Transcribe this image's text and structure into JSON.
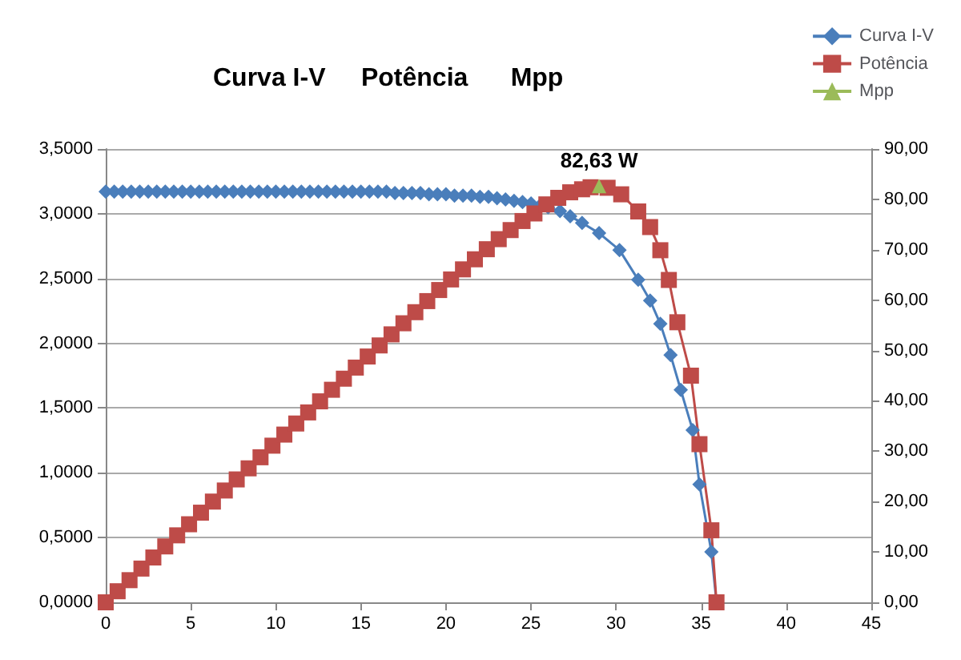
{
  "chart_data": {
    "type": "line",
    "title": "Curva I-V     Potência      Mpp",
    "legend": "top right",
    "grid": "y",
    "xlim": [
      0,
      45
    ],
    "xticks": [
      0,
      5,
      10,
      15,
      20,
      25,
      30,
      35,
      40,
      45
    ],
    "ylim": [
      0,
      3.5
    ],
    "yticks": [
      {
        "value": 0,
        "label": "0,0000"
      },
      {
        "value": 0.5,
        "label": "0,5000"
      },
      {
        "value": 1,
        "label": "1,0000"
      },
      {
        "value": 1.5,
        "label": "1,5000"
      },
      {
        "value": 2,
        "label": "2,0000"
      },
      {
        "value": 2.5,
        "label": "2,5000"
      },
      {
        "value": 3,
        "label": "3,0000"
      },
      {
        "value": 3.5,
        "label": "3,5000"
      }
    ],
    "y2lim": [
      0,
      90
    ],
    "y2ticks": [
      {
        "value": 0,
        "label": "0,00"
      },
      {
        "value": 10,
        "label": "10,00"
      },
      {
        "value": 20,
        "label": "20,00"
      },
      {
        "value": 30,
        "label": "30,00"
      },
      {
        "value": 40,
        "label": "40,00"
      },
      {
        "value": 50,
        "label": "50,00"
      },
      {
        "value": 60,
        "label": "60,00"
      },
      {
        "value": 70,
        "label": "70,00"
      },
      {
        "value": 80,
        "label": "80,00"
      },
      {
        "value": 90,
        "label": "90,00"
      }
    ],
    "series": [
      {
        "name": "Curva I-V",
        "color": "#4a7ebb",
        "marker": "diamond",
        "x": [
          0,
          0.5,
          1,
          1.5,
          2,
          2.5,
          3,
          3.5,
          4,
          4.5,
          5,
          5.5,
          6,
          6.5,
          7,
          7.5,
          8,
          8.5,
          9,
          9.5,
          10,
          10.5,
          11,
          11.5,
          12,
          12.5,
          13,
          13.5,
          14,
          14.5,
          15,
          15.5,
          16,
          16.5,
          17,
          17.5,
          18,
          18.5,
          19,
          19.5,
          20,
          20.5,
          21,
          21.5,
          22,
          22.5,
          23,
          23.5,
          24,
          24.5,
          25,
          25.5,
          26,
          26.7,
          27.3,
          28,
          29,
          30.2,
          31.3,
          32,
          32.6,
          33.2,
          33.8,
          34.5,
          34.9,
          35.6,
          35.9
        ],
        "values": [
          3.17,
          3.17,
          3.17,
          3.17,
          3.17,
          3.17,
          3.17,
          3.17,
          3.17,
          3.17,
          3.17,
          3.17,
          3.17,
          3.17,
          3.17,
          3.17,
          3.17,
          3.17,
          3.17,
          3.17,
          3.17,
          3.17,
          3.17,
          3.17,
          3.17,
          3.17,
          3.17,
          3.17,
          3.17,
          3.17,
          3.17,
          3.17,
          3.17,
          3.17,
          3.16,
          3.16,
          3.16,
          3.16,
          3.15,
          3.15,
          3.15,
          3.14,
          3.14,
          3.14,
          3.13,
          3.13,
          3.12,
          3.11,
          3.1,
          3.09,
          3.08,
          3.06,
          3.05,
          3.02,
          2.98,
          2.93,
          2.85,
          2.72,
          2.49,
          2.33,
          2.15,
          1.91,
          1.64,
          1.33,
          0.91,
          0.39,
          0
        ]
      },
      {
        "name": "Potência",
        "color": "#be4b48",
        "marker": "square",
        "axis": "y2",
        "x": [
          0,
          0.7,
          1.4,
          2.1,
          2.8,
          3.5,
          4.2,
          4.9,
          5.6,
          6.3,
          7,
          7.7,
          8.4,
          9.1,
          9.8,
          10.5,
          11.2,
          11.9,
          12.6,
          13.3,
          14,
          14.7,
          15.4,
          16.1,
          16.8,
          17.5,
          18.2,
          18.9,
          19.6,
          20.3,
          21,
          21.7,
          22.4,
          23.1,
          23.8,
          24.5,
          25.2,
          25.9,
          26.6,
          27.3,
          28,
          28.5,
          29.5,
          30.3,
          31.3,
          32,
          32.6,
          33.1,
          33.6,
          34.4,
          34.9,
          35.6,
          35.9
        ],
        "values": [
          0,
          2.2,
          4.4,
          6.7,
          8.9,
          11.1,
          13.3,
          15.5,
          17.8,
          20,
          22.2,
          24.4,
          26.6,
          28.8,
          31.1,
          33.3,
          35.5,
          37.7,
          39.9,
          42.2,
          44.4,
          46.6,
          48.8,
          51,
          53.2,
          55.4,
          57.6,
          59.8,
          62,
          64.1,
          66.1,
          68.1,
          70.1,
          72.1,
          73.9,
          75.7,
          77.2,
          79,
          80.3,
          81.4,
          82,
          82.4,
          82.3,
          81,
          77.6,
          74.5,
          69.9,
          64,
          55.6,
          45,
          31.4,
          14.3,
          0
        ]
      },
      {
        "name": "Mpp",
        "color": "#9bbb59",
        "marker": "triangle",
        "axis": "y2",
        "x": [
          29
        ],
        "values": [
          82.63
        ],
        "value_labels": [
          "82,63 W"
        ]
      }
    ]
  }
}
